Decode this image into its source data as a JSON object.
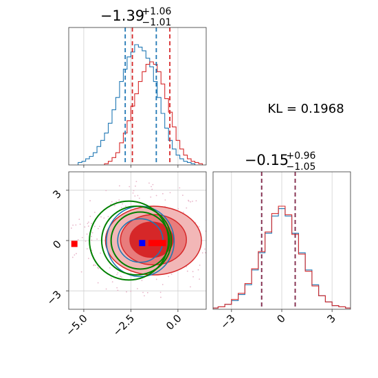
{
  "chart_data": {
    "type": "corner",
    "kl_label": "KL = 0.1968",
    "colors": {
      "blue": "#1f77b4",
      "red": "#d62728",
      "green": "#008000",
      "marker_blue": "#0000ff",
      "marker_red": "#ff0000"
    },
    "panels": [
      {
        "id": "x-marginal",
        "title": {
          "center": "−1.39",
          "plus": "+1.06",
          "minus": "−1.01"
        },
        "xlim": [
          -5.8,
          1.5
        ],
        "ylim": [
          0,
          1.12
        ],
        "grid": true,
        "show_tick_labels": false,
        "quantiles": {
          "blue": [
            -2.8,
            -1.15
          ],
          "red": [
            -2.42,
            -0.43
          ]
        },
        "series": [
          {
            "name": "",
            "color": "blue",
            "x": [
              -5.2,
              -5.0,
              -4.8,
              -4.6,
              -4.4,
              -4.2,
              -4.0,
              -3.8,
              -3.6,
              -3.4,
              -3.2,
              -3.0,
              -2.8,
              -2.6,
              -2.4,
              -2.2,
              -2.0,
              -1.8,
              -1.6,
              -1.4,
              -1.2,
              -1.0,
              -0.8,
              -0.6,
              -0.4,
              -0.2,
              0.0,
              0.2,
              0.4,
              0.6,
              0.8
            ],
            "y": [
              0.02,
              0.03,
              0.05,
              0.07,
              0.1,
              0.15,
              0.2,
              0.26,
              0.34,
              0.45,
              0.55,
              0.68,
              0.78,
              0.88,
              0.92,
              0.98,
              0.96,
              0.93,
              0.87,
              0.8,
              0.68,
              0.55,
              0.42,
              0.3,
              0.2,
              0.13,
              0.08,
              0.05,
              0.03,
              0.02,
              0.01
            ]
          },
          {
            "name": "",
            "color": "red",
            "x": [
              -3.8,
              -3.6,
              -3.4,
              -3.2,
              -3.0,
              -2.8,
              -2.6,
              -2.4,
              -2.2,
              -2.0,
              -1.8,
              -1.6,
              -1.4,
              -1.2,
              -1.0,
              -0.8,
              -0.6,
              -0.4,
              -0.2,
              0.0,
              0.2,
              0.4,
              0.6,
              0.8,
              1.0,
              1.2
            ],
            "y": [
              0.01,
              0.03,
              0.06,
              0.1,
              0.18,
              0.26,
              0.36,
              0.48,
              0.58,
              0.68,
              0.76,
              0.82,
              0.84,
              0.82,
              0.76,
              0.66,
              0.54,
              0.43,
              0.31,
              0.2,
              0.13,
              0.08,
              0.05,
              0.03,
              0.02,
              0.01
            ]
          }
        ]
      },
      {
        "id": "joint",
        "xlim": [
          -5.8,
          1.5
        ],
        "ylim": [
          -4.1,
          4.1
        ],
        "grid": true,
        "x_ticks": [
          -5.0,
          -2.5,
          0.0
        ],
        "x_tick_labels": [
          "−5.0",
          "−2.5",
          "0.0"
        ],
        "y_ticks": [
          -3,
          0,
          3
        ],
        "y_tick_labels": [
          "−3",
          "0",
          "3"
        ],
        "red_contours": [
          {
            "cx": -1.3,
            "cy": 0.0,
            "rx": 2.55,
            "ry": 2.05,
            "level": "outer"
          },
          {
            "cx": -1.3,
            "cy": 0.05,
            "rx": 1.75,
            "ry": 1.5,
            "level": "middle"
          },
          {
            "cx": -1.4,
            "cy": 0.05,
            "rx": 1.15,
            "ry": 1.05,
            "level": "inner"
          }
        ],
        "blue_contours": [
          {
            "cx": -2.0,
            "cy": -0.05,
            "rx": 1.8,
            "ry": 2.1
          },
          {
            "cx": -2.0,
            "cy": 0.0,
            "rx": 1.2,
            "ry": 1.3
          }
        ],
        "green_circles": [
          {
            "cx": -2.6,
            "cy": 0.0,
            "rx": 2.1,
            "ry": 2.35
          },
          {
            "cx": -2.2,
            "cy": 0.0,
            "rx": 1.85,
            "ry": 2.05
          },
          {
            "cx": -2.0,
            "cy": 0.0,
            "rx": 1.55,
            "ry": 1.7
          }
        ],
        "markers": [
          {
            "x": -5.5,
            "y": -0.2,
            "color": "marker_red"
          },
          {
            "x": -1.9,
            "y": -0.15,
            "color": "marker_blue"
          },
          {
            "x": -1.4,
            "y": -0.15,
            "color": "marker_red"
          },
          {
            "x": -1.1,
            "y": -0.15,
            "color": "marker_red"
          },
          {
            "x": -0.8,
            "y": -0.15,
            "color": "marker_red"
          }
        ]
      },
      {
        "id": "y-marginal",
        "title": {
          "center": "−0.15",
          "plus": "+0.96",
          "minus": "−1.05"
        },
        "xlim": [
          -4.1,
          4.1
        ],
        "ylim": [
          0,
          1.12
        ],
        "grid": true,
        "x_ticks": [
          -3,
          0,
          3
        ],
        "x_tick_labels": [
          "−3",
          "0",
          "3"
        ],
        "quantiles": {
          "blue": [
            -1.2,
            0.8
          ],
          "red": [
            -1.2,
            0.8
          ]
        },
        "series": [
          {
            "name": "",
            "color": "blue",
            "x": [
              -4.0,
              -3.6,
              -3.2,
              -2.8,
              -2.4,
              -2.0,
              -1.6,
              -1.2,
              -0.8,
              -0.4,
              0.0,
              0.4,
              0.8,
              1.2,
              1.6,
              2.0,
              2.4,
              2.8,
              3.2,
              3.6,
              4.0
            ],
            "y": [
              0.01,
              0.02,
              0.04,
              0.07,
              0.12,
              0.2,
              0.32,
              0.46,
              0.62,
              0.76,
              0.82,
              0.76,
              0.62,
              0.46,
              0.32,
              0.2,
              0.11,
              0.06,
              0.03,
              0.02,
              0.01
            ]
          },
          {
            "name": "",
            "color": "red",
            "x": [
              -4.0,
              -3.6,
              -3.2,
              -2.8,
              -2.4,
              -2.0,
              -1.6,
              -1.2,
              -0.8,
              -0.4,
              0.0,
              0.4,
              0.8,
              1.2,
              1.6,
              2.0,
              2.4,
              2.8,
              3.2,
              3.6,
              4.0
            ],
            "y": [
              0.01,
              0.02,
              0.04,
              0.08,
              0.13,
              0.21,
              0.33,
              0.47,
              0.63,
              0.78,
              0.84,
              0.77,
              0.61,
              0.45,
              0.31,
              0.19,
              0.11,
              0.06,
              0.03,
              0.02,
              0.01
            ]
          }
        ]
      }
    ]
  }
}
